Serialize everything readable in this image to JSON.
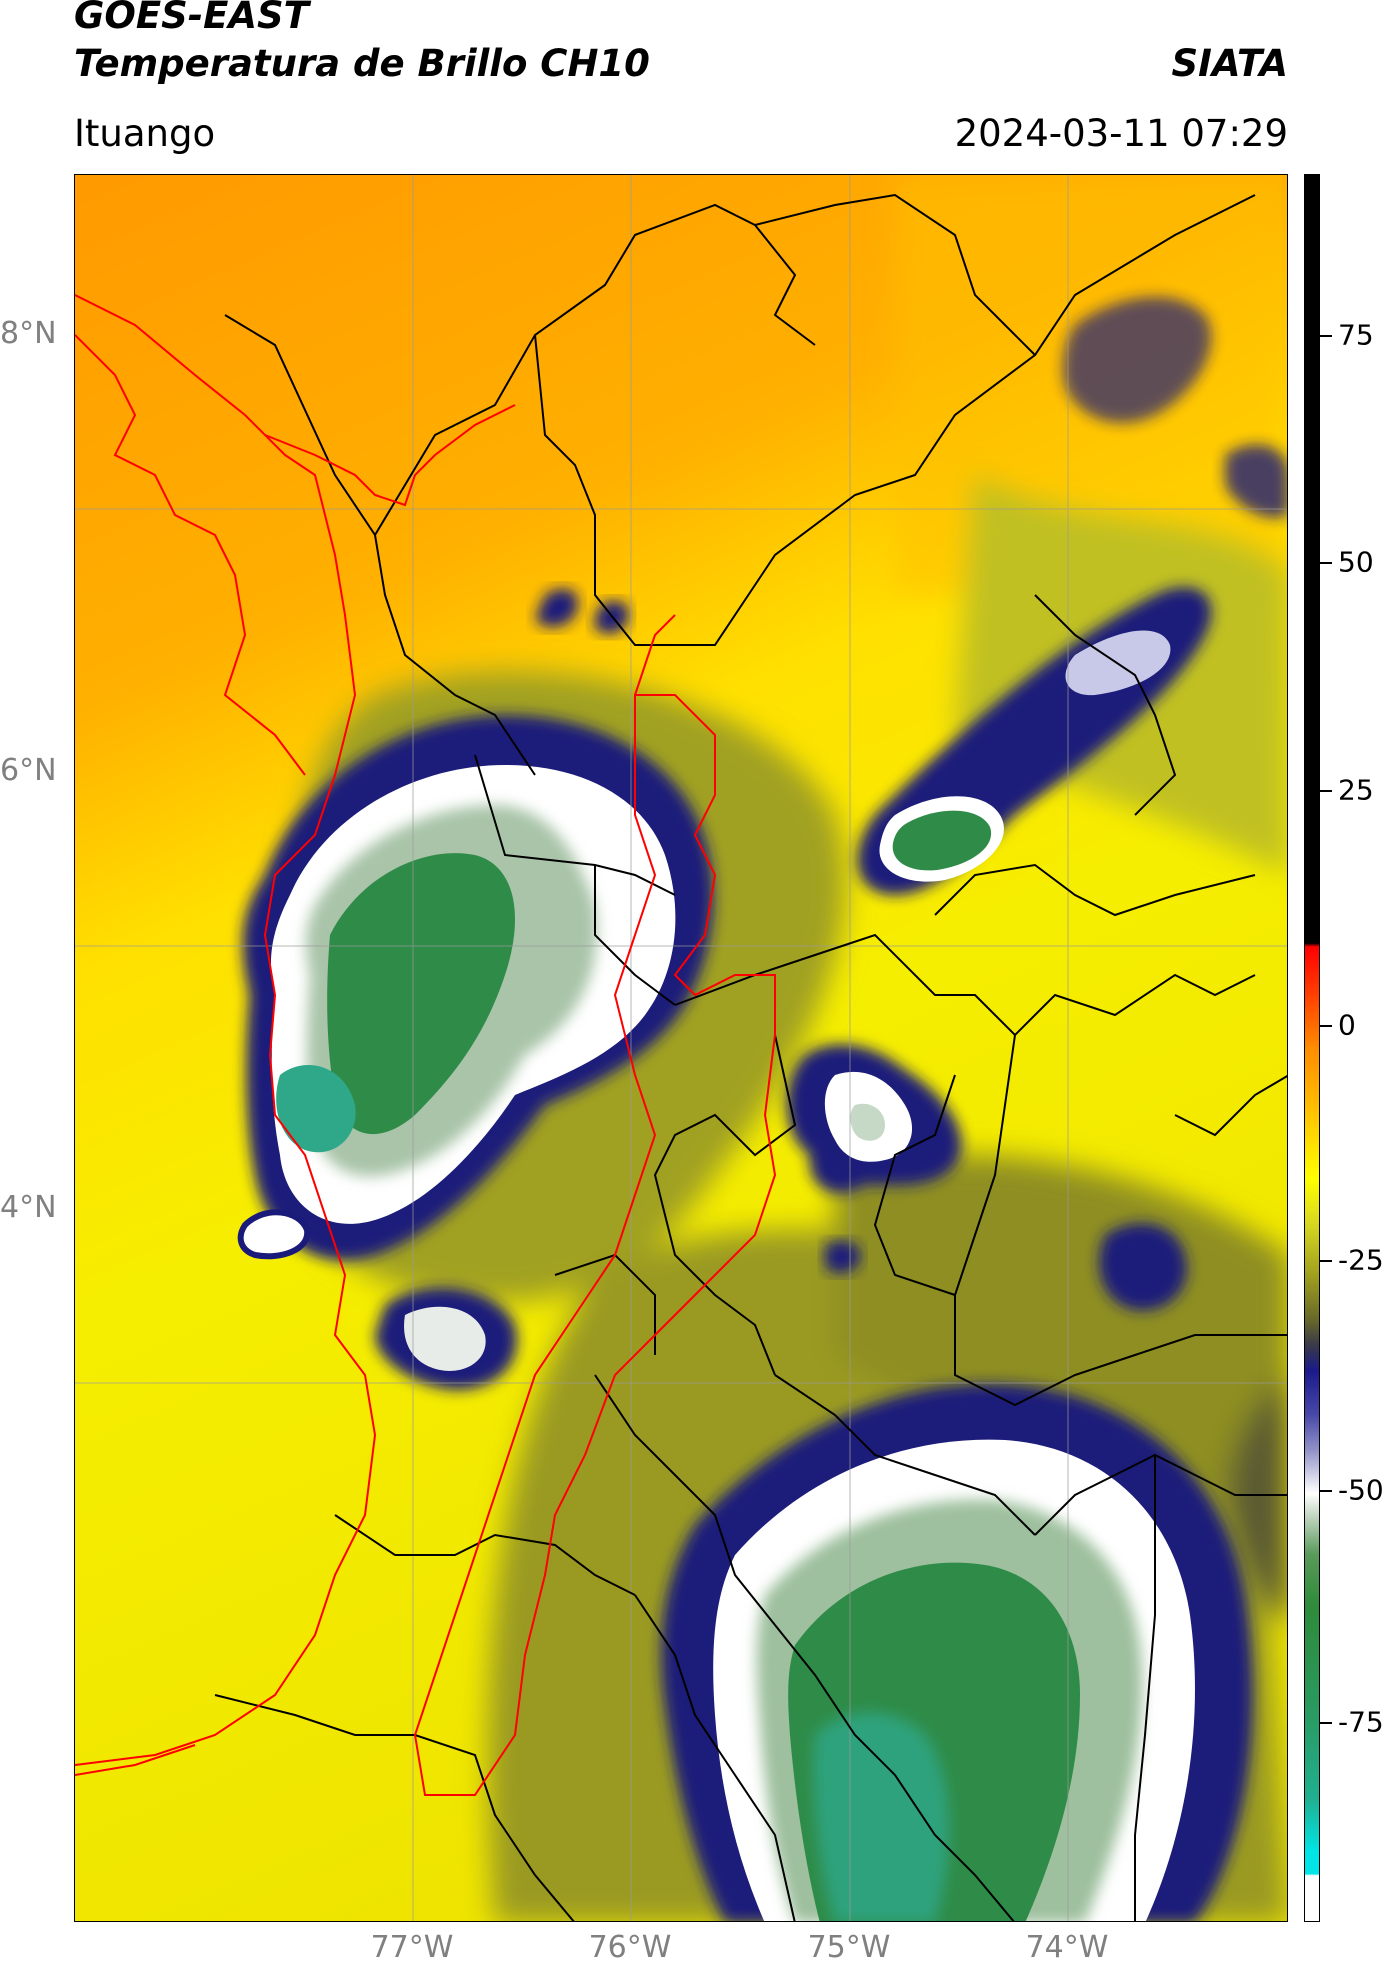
{
  "header": {
    "satellite": "GOES-EAST",
    "product": "Temperatura de Brillo CH10",
    "organization": "SIATA",
    "region": "Ituango",
    "timestamp": "2024-03-11 07:29"
  },
  "map": {
    "lat_labels": [
      "8°N",
      "6°N",
      "4°N"
    ],
    "lon_labels": [
      "77°W",
      "76°W",
      "75°W",
      "74°W"
    ],
    "boundary_colors": {
      "country_coast": "#ff0000",
      "departments": "#000000"
    }
  },
  "colorbar": {
    "tick_labels": [
      "75",
      "50",
      "25",
      "0",
      "-25",
      "-50",
      "-75"
    ],
    "colors": [
      "#000000",
      "#ff0000",
      "#ff8c00",
      "#ffff00",
      "#9a9a20",
      "#1a1a8c",
      "#ffffff",
      "#2e8b3a",
      "#20b090",
      "#00e5e5"
    ]
  }
}
